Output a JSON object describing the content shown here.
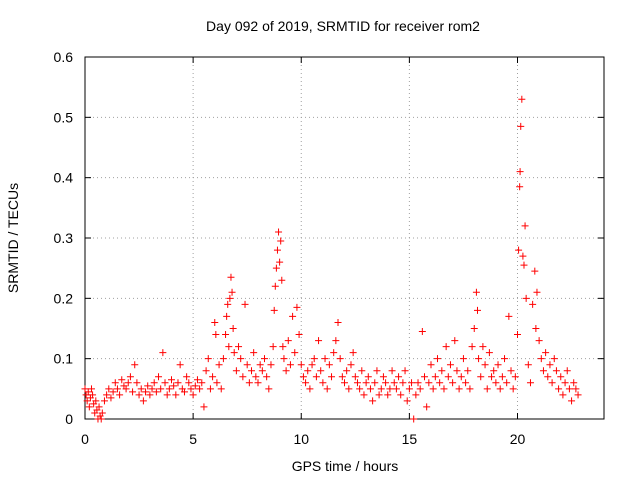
{
  "chart_data": {
    "type": "scatter",
    "title": "Day 092 of 2019, SRMTID for receiver rom2",
    "xlabel": "GPS time / hours",
    "ylabel": "SRMTID / TECUs",
    "xlim": [
      0,
      24
    ],
    "ylim": [
      0,
      0.6
    ],
    "xticks": [
      0,
      5,
      10,
      15,
      20
    ],
    "yticks": [
      0,
      0.1,
      0.2,
      0.3,
      0.4,
      0.5,
      0.6
    ],
    "xtick_labels": [
      "0",
      "5",
      "10",
      "15",
      "20"
    ],
    "ytick_labels": [
      "0",
      "0.1",
      "0.2",
      "0.3",
      "0.4",
      "0.5",
      "0.6"
    ],
    "grid": true,
    "marker": "+",
    "marker_color": "#ff0000",
    "series": [
      {
        "name": "rom2",
        "points": [
          [
            0.0,
            0.05
          ],
          [
            0.05,
            0.04
          ],
          [
            0.1,
            0.03
          ],
          [
            0.15,
            0.045
          ],
          [
            0.2,
            0.02
          ],
          [
            0.25,
            0.035
          ],
          [
            0.3,
            0.05
          ],
          [
            0.35,
            0.04
          ],
          [
            0.4,
            0.025
          ],
          [
            0.45,
            0.01
          ],
          [
            0.5,
            0.03
          ],
          [
            0.55,
            0.015
          ],
          [
            0.6,
            0.0
          ],
          [
            0.65,
            0.02
          ],
          [
            0.7,
            0.005
          ],
          [
            0.75,
            0.0
          ],
          [
            0.8,
            0.01
          ],
          [
            0.9,
            0.03
          ],
          [
            1.0,
            0.04
          ],
          [
            1.1,
            0.05
          ],
          [
            1.2,
            0.035
          ],
          [
            1.3,
            0.045
          ],
          [
            1.4,
            0.06
          ],
          [
            1.5,
            0.05
          ],
          [
            1.6,
            0.04
          ],
          [
            1.7,
            0.065
          ],
          [
            1.8,
            0.055
          ],
          [
            1.9,
            0.05
          ],
          [
            2.0,
            0.06
          ],
          [
            2.1,
            0.07
          ],
          [
            2.2,
            0.045
          ],
          [
            2.3,
            0.09
          ],
          [
            2.4,
            0.06
          ],
          [
            2.5,
            0.04
          ],
          [
            2.6,
            0.05
          ],
          [
            2.7,
            0.03
          ],
          [
            2.8,
            0.045
          ],
          [
            2.9,
            0.055
          ],
          [
            3.0,
            0.04
          ],
          [
            3.1,
            0.05
          ],
          [
            3.2,
            0.06
          ],
          [
            3.3,
            0.045
          ],
          [
            3.4,
            0.07
          ],
          [
            3.5,
            0.05
          ],
          [
            3.6,
            0.11
          ],
          [
            3.7,
            0.06
          ],
          [
            3.8,
            0.04
          ],
          [
            3.9,
            0.05
          ],
          [
            4.0,
            0.065
          ],
          [
            4.1,
            0.055
          ],
          [
            4.2,
            0.04
          ],
          [
            4.3,
            0.06
          ],
          [
            4.4,
            0.09
          ],
          [
            4.5,
            0.05
          ],
          [
            4.6,
            0.045
          ],
          [
            4.7,
            0.07
          ],
          [
            4.8,
            0.06
          ],
          [
            4.9,
            0.05
          ],
          [
            5.0,
            0.04
          ],
          [
            5.1,
            0.055
          ],
          [
            5.2,
            0.065
          ],
          [
            5.3,
            0.05
          ],
          [
            5.4,
            0.06
          ],
          [
            5.5,
            0.02
          ],
          [
            5.6,
            0.08
          ],
          [
            5.7,
            0.1
          ],
          [
            5.8,
            0.05
          ],
          [
            5.9,
            0.07
          ],
          [
            6.0,
            0.16
          ],
          [
            6.05,
            0.14
          ],
          [
            6.1,
            0.06
          ],
          [
            6.2,
            0.09
          ],
          [
            6.3,
            0.05
          ],
          [
            6.4,
            0.1
          ],
          [
            6.5,
            0.14
          ],
          [
            6.55,
            0.17
          ],
          [
            6.6,
            0.19
          ],
          [
            6.65,
            0.12
          ],
          [
            6.7,
            0.2
          ],
          [
            6.75,
            0.235
          ],
          [
            6.8,
            0.21
          ],
          [
            6.85,
            0.15
          ],
          [
            6.9,
            0.11
          ],
          [
            7.0,
            0.08
          ],
          [
            7.1,
            0.12
          ],
          [
            7.2,
            0.1
          ],
          [
            7.3,
            0.07
          ],
          [
            7.4,
            0.19
          ],
          [
            7.5,
            0.09
          ],
          [
            7.6,
            0.06
          ],
          [
            7.7,
            0.08
          ],
          [
            7.8,
            0.11
          ],
          [
            7.9,
            0.07
          ],
          [
            8.0,
            0.06
          ],
          [
            8.1,
            0.09
          ],
          [
            8.2,
            0.08
          ],
          [
            8.3,
            0.1
          ],
          [
            8.4,
            0.07
          ],
          [
            8.5,
            0.05
          ],
          [
            8.6,
            0.09
          ],
          [
            8.7,
            0.12
          ],
          [
            8.75,
            0.18
          ],
          [
            8.8,
            0.22
          ],
          [
            8.85,
            0.25
          ],
          [
            8.9,
            0.28
          ],
          [
            8.95,
            0.31
          ],
          [
            9.0,
            0.26
          ],
          [
            9.05,
            0.295
          ],
          [
            9.1,
            0.23
          ],
          [
            9.15,
            0.12
          ],
          [
            9.2,
            0.1
          ],
          [
            9.3,
            0.08
          ],
          [
            9.4,
            0.13
          ],
          [
            9.5,
            0.09
          ],
          [
            9.6,
            0.17
          ],
          [
            9.7,
            0.11
          ],
          [
            9.8,
            0.185
          ],
          [
            9.9,
            0.14
          ],
          [
            10.0,
            0.09
          ],
          [
            10.1,
            0.07
          ],
          [
            10.2,
            0.06
          ],
          [
            10.3,
            0.08
          ],
          [
            10.4,
            0.05
          ],
          [
            10.5,
            0.09
          ],
          [
            10.6,
            0.1
          ],
          [
            10.7,
            0.07
          ],
          [
            10.8,
            0.13
          ],
          [
            10.9,
            0.08
          ],
          [
            11.0,
            0.06
          ],
          [
            11.1,
            0.1
          ],
          [
            11.2,
            0.05
          ],
          [
            11.3,
            0.09
          ],
          [
            11.4,
            0.07
          ],
          [
            11.5,
            0.11
          ],
          [
            11.6,
            0.13
          ],
          [
            11.7,
            0.16
          ],
          [
            11.8,
            0.1
          ],
          [
            11.9,
            0.07
          ],
          [
            12.0,
            0.06
          ],
          [
            12.1,
            0.08
          ],
          [
            12.2,
            0.05
          ],
          [
            12.3,
            0.09
          ],
          [
            12.4,
            0.11
          ],
          [
            12.5,
            0.07
          ],
          [
            12.6,
            0.06
          ],
          [
            12.7,
            0.05
          ],
          [
            12.8,
            0.08
          ],
          [
            12.9,
            0.04
          ],
          [
            13.0,
            0.06
          ],
          [
            13.1,
            0.07
          ],
          [
            13.2,
            0.05
          ],
          [
            13.3,
            0.03
          ],
          [
            13.4,
            0.06
          ],
          [
            13.5,
            0.08
          ],
          [
            13.6,
            0.04
          ],
          [
            13.7,
            0.05
          ],
          [
            13.8,
            0.07
          ],
          [
            13.9,
            0.06
          ],
          [
            14.0,
            0.04
          ],
          [
            14.1,
            0.05
          ],
          [
            14.2,
            0.08
          ],
          [
            14.3,
            0.06
          ],
          [
            14.4,
            0.05
          ],
          [
            14.5,
            0.07
          ],
          [
            14.6,
            0.04
          ],
          [
            14.7,
            0.06
          ],
          [
            14.8,
            0.08
          ],
          [
            14.9,
            0.03
          ],
          [
            15.0,
            0.05
          ],
          [
            15.1,
            0.06
          ],
          [
            15.2,
            0.0
          ],
          [
            15.3,
            0.04
          ],
          [
            15.4,
            0.06
          ],
          [
            15.5,
            0.05
          ],
          [
            15.6,
            0.145
          ],
          [
            15.7,
            0.07
          ],
          [
            15.8,
            0.02
          ],
          [
            15.9,
            0.06
          ],
          [
            16.0,
            0.09
          ],
          [
            16.1,
            0.05
          ],
          [
            16.2,
            0.07
          ],
          [
            16.3,
            0.1
          ],
          [
            16.4,
            0.06
          ],
          [
            16.5,
            0.08
          ],
          [
            16.6,
            0.05
          ],
          [
            16.7,
            0.12
          ],
          [
            16.8,
            0.07
          ],
          [
            16.9,
            0.09
          ],
          [
            17.0,
            0.06
          ],
          [
            17.1,
            0.13
          ],
          [
            17.2,
            0.08
          ],
          [
            17.3,
            0.05
          ],
          [
            17.4,
            0.07
          ],
          [
            17.5,
            0.1
          ],
          [
            17.6,
            0.06
          ],
          [
            17.7,
            0.08
          ],
          [
            17.8,
            0.05
          ],
          [
            17.9,
            0.12
          ],
          [
            18.0,
            0.15
          ],
          [
            18.1,
            0.21
          ],
          [
            18.15,
            0.18
          ],
          [
            18.2,
            0.1
          ],
          [
            18.3,
            0.07
          ],
          [
            18.4,
            0.12
          ],
          [
            18.5,
            0.09
          ],
          [
            18.6,
            0.05
          ],
          [
            18.7,
            0.11
          ],
          [
            18.8,
            0.07
          ],
          [
            18.9,
            0.08
          ],
          [
            19.0,
            0.06
          ],
          [
            19.1,
            0.09
          ],
          [
            19.2,
            0.05
          ],
          [
            19.3,
            0.07
          ],
          [
            19.4,
            0.1
          ],
          [
            19.5,
            0.06
          ],
          [
            19.6,
            0.17
          ],
          [
            19.7,
            0.08
          ],
          [
            19.8,
            0.05
          ],
          [
            19.9,
            0.07
          ],
          [
            20.0,
            0.14
          ],
          [
            20.05,
            0.28
          ],
          [
            20.1,
            0.385
          ],
          [
            20.12,
            0.41
          ],
          [
            20.15,
            0.485
          ],
          [
            20.2,
            0.53
          ],
          [
            20.25,
            0.27
          ],
          [
            20.3,
            0.255
          ],
          [
            20.35,
            0.32
          ],
          [
            20.4,
            0.2
          ],
          [
            20.5,
            0.09
          ],
          [
            20.6,
            0.06
          ],
          [
            20.7,
            0.19
          ],
          [
            20.8,
            0.245
          ],
          [
            20.85,
            0.15
          ],
          [
            20.9,
            0.21
          ],
          [
            21.0,
            0.13
          ],
          [
            21.1,
            0.1
          ],
          [
            21.2,
            0.08
          ],
          [
            21.3,
            0.11
          ],
          [
            21.4,
            0.07
          ],
          [
            21.5,
            0.09
          ],
          [
            21.6,
            0.06
          ],
          [
            21.7,
            0.1
          ],
          [
            21.8,
            0.08
          ],
          [
            21.9,
            0.05
          ],
          [
            22.0,
            0.07
          ],
          [
            22.1,
            0.04
          ],
          [
            22.2,
            0.06
          ],
          [
            22.3,
            0.08
          ],
          [
            22.4,
            0.05
          ],
          [
            22.5,
            0.03
          ],
          [
            22.6,
            0.06
          ],
          [
            22.7,
            0.05
          ],
          [
            22.8,
            0.04
          ]
        ]
      }
    ]
  }
}
